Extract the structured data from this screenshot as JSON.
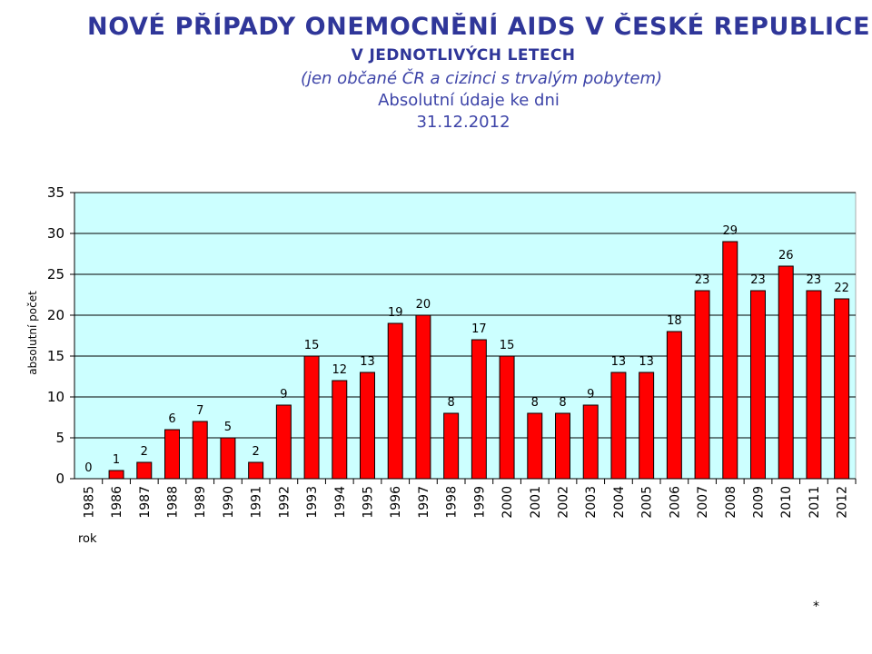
{
  "header": {
    "title": "NOVÉ PŘÍPADY ONEMOCNĚNÍ AIDS V ČESKÉ REPUBLICE",
    "subtitle": "V JEDNOTLIVÝCH LETECH",
    "note": "(jen občané ČR a cizinci s trvalým pobytem)",
    "basis": "Absolutní údaje ke dni",
    "date": "31.12.2012"
  },
  "footnote": "*",
  "colors": {
    "bar": "#ff0000",
    "plot_background": "#ccffff",
    "title": "#2f3699"
  },
  "chart_data": {
    "type": "bar",
    "categories": [
      "1985",
      "1986",
      "1987",
      "1988",
      "1989",
      "1990",
      "1991",
      "1992",
      "1993",
      "1994",
      "1995",
      "1996",
      "1997",
      "1998",
      "1999",
      "2000",
      "2001",
      "2002",
      "2003",
      "2004",
      "2005",
      "2006",
      "2007",
      "2008",
      "2009",
      "2010",
      "2011",
      "2012"
    ],
    "values": [
      0,
      1,
      2,
      6,
      7,
      5,
      2,
      9,
      15,
      12,
      13,
      19,
      20,
      8,
      17,
      15,
      8,
      8,
      9,
      13,
      13,
      18,
      23,
      29,
      23,
      26,
      23,
      22
    ],
    "xlabel": "rok",
    "ylabel": "absolutní počet",
    "ylim": [
      0,
      35
    ],
    "yticks": [
      0,
      5,
      10,
      15,
      20,
      25,
      30,
      35
    ],
    "grid": true,
    "data_labels": true
  }
}
